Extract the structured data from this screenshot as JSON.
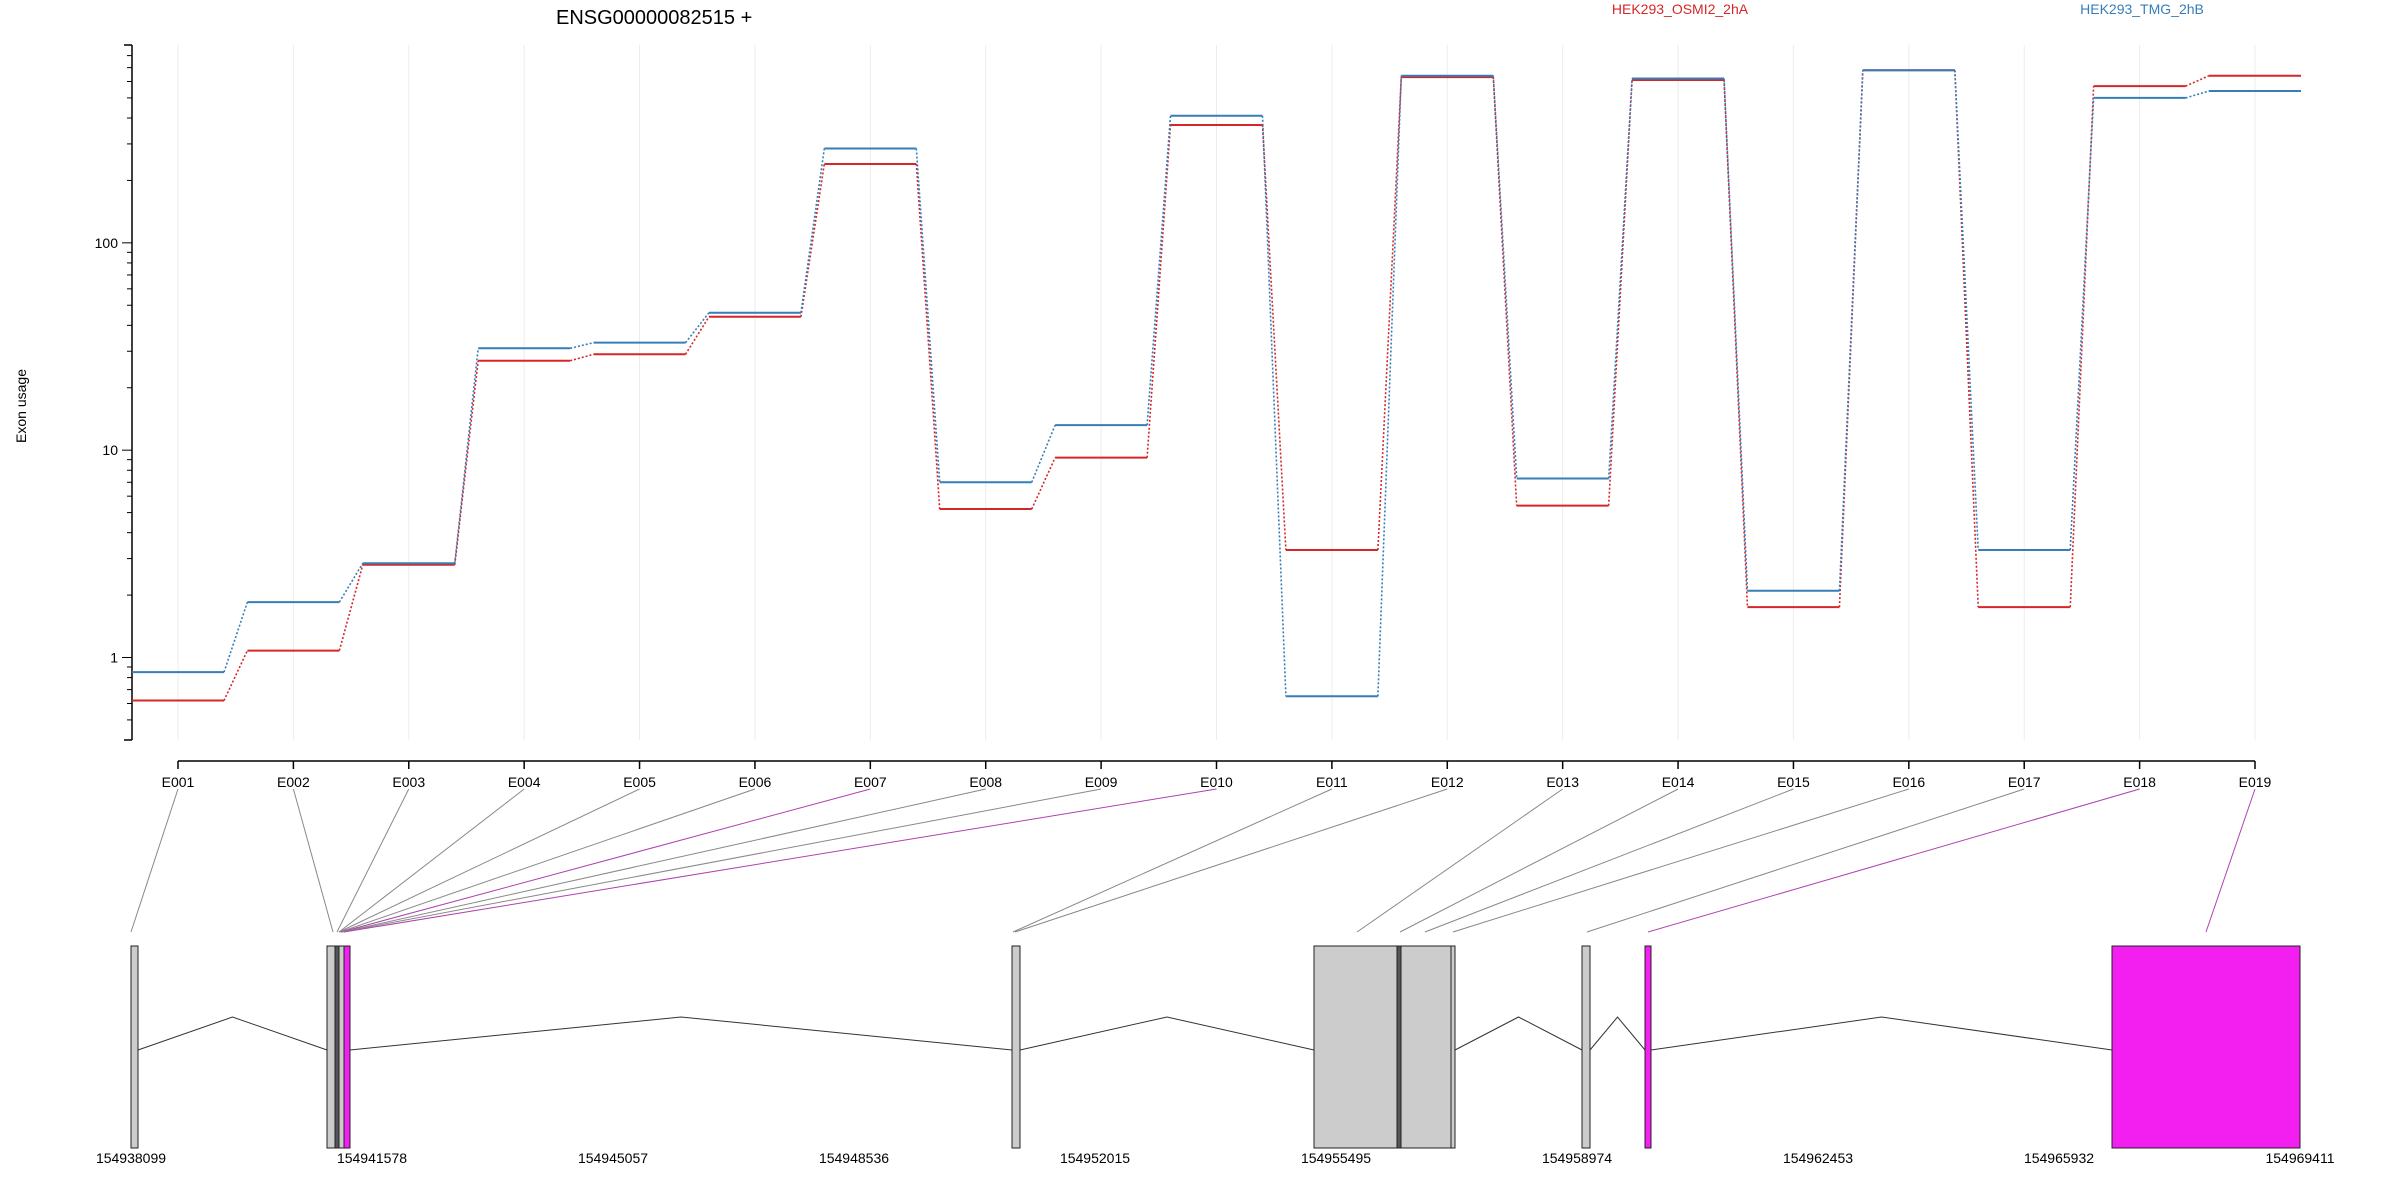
{
  "chart_data": {
    "type": "line",
    "title": "ENSG00000082515 +",
    "ylabel": "Exon usage",
    "yscale": "log",
    "ylim": [
      0.4,
      900
    ],
    "yticks": [
      {
        "value": 1,
        "label": "1"
      },
      {
        "value": 10,
        "label": "10"
      },
      {
        "value": 100,
        "label": "100"
      }
    ],
    "categories": [
      "E001",
      "E002",
      "E003",
      "E004",
      "E005",
      "E006",
      "E007",
      "E008",
      "E009",
      "E010",
      "E011",
      "E012",
      "E013",
      "E014",
      "E015",
      "E016",
      "E017",
      "E018",
      "E019"
    ],
    "legend": [
      {
        "name": "HEK293_OSMI2_2hA",
        "color": "#d62728"
      },
      {
        "name": "HEK293_TMG_2hB",
        "color": "#377eb8"
      }
    ],
    "series": [
      {
        "name": "HEK293_OSMI2_2hA",
        "color": "#d62728",
        "values": [
          0.62,
          1.08,
          2.8,
          27,
          29,
          44,
          240,
          5.2,
          9.2,
          370,
          3.3,
          630,
          5.4,
          610,
          1.75,
          680,
          1.75,
          570,
          640
        ]
      },
      {
        "name": "HEK293_TMG_2hB",
        "color": "#377eb8",
        "values": [
          0.85,
          1.85,
          2.85,
          31,
          33,
          46,
          285,
          7.0,
          13.2,
          410,
          0.65,
          640,
          7.3,
          620,
          2.1,
          680,
          3.3,
          500,
          540
        ]
      }
    ],
    "grid": "vertical-light",
    "gene_model": {
      "coord_labels": [
        "154938099",
        "154941578",
        "154945057",
        "154948536",
        "154952015",
        "154955495",
        "154958974",
        "154962453",
        "154965932",
        "154969411"
      ],
      "highlight_color": "#f21ff0",
      "exon_color": "#cccccc",
      "highlighted_exons": [
        "E007",
        "E010",
        "E018",
        "E019"
      ]
    }
  }
}
